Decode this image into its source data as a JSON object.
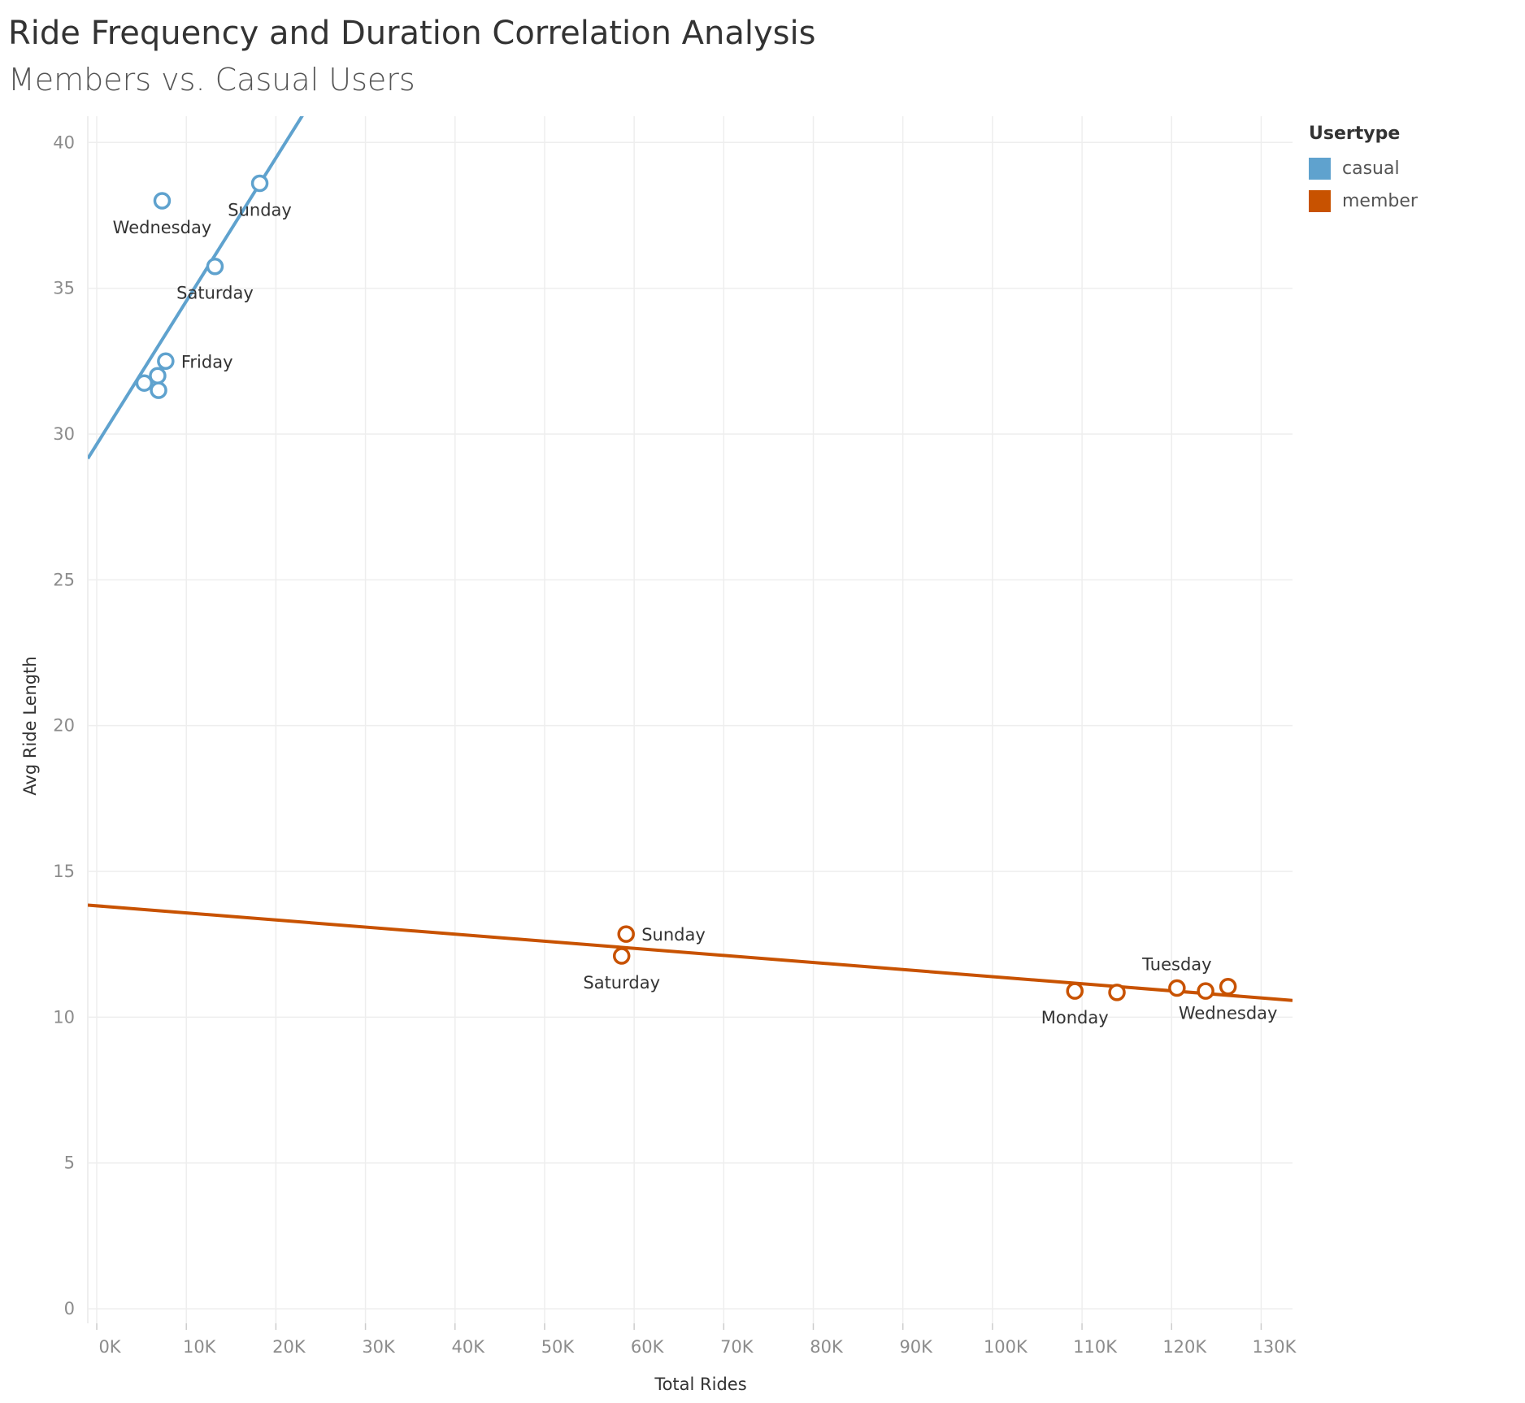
{
  "chart_data": {
    "type": "scatter",
    "title": "Ride Frequency and Duration Correlation Analysis",
    "subtitle": "Members vs. Casual Users",
    "xlabel": "Total Rides",
    "ylabel": "Avg Ride Length",
    "xlim": [
      -1000,
      133500
    ],
    "ylim": [
      -0.5,
      40.9
    ],
    "x_ticks": [
      0,
      10000,
      20000,
      30000,
      40000,
      50000,
      60000,
      70000,
      80000,
      90000,
      100000,
      110000,
      120000,
      130000
    ],
    "x_tick_labels": [
      "0K",
      "10K",
      "20K",
      "30K",
      "40K",
      "50K",
      "60K",
      "70K",
      "80K",
      "90K",
      "100K",
      "110K",
      "120K",
      "130K"
    ],
    "y_ticks": [
      0,
      5,
      10,
      15,
      20,
      25,
      30,
      35,
      40
    ],
    "y_tick_labels": [
      "0",
      "5",
      "10",
      "15",
      "20",
      "25",
      "30",
      "35",
      "40"
    ],
    "grid": true,
    "legend": {
      "title": "Usertype",
      "placement": "top-right",
      "items": [
        {
          "label": "casual",
          "color": "#5fa2ce"
        },
        {
          "label": "member",
          "color": "#c85200"
        }
      ]
    },
    "series": [
      {
        "name": "casual",
        "color": "#5fa2ce",
        "trend": {
          "intercept": 29.65,
          "slope": 0.000491
        },
        "points": [
          {
            "x": 7300,
            "y": 38.0,
            "label": "Wednesday",
            "label_pos": "below"
          },
          {
            "x": 18200,
            "y": 38.6,
            "label": "Sunday",
            "label_pos": "below"
          },
          {
            "x": 13200,
            "y": 35.75,
            "label": "Saturday",
            "label_pos": "below"
          },
          {
            "x": 7700,
            "y": 32.5,
            "label": "Friday",
            "label_pos": "right"
          },
          {
            "x": 5300,
            "y": 31.75,
            "label": ""
          },
          {
            "x": 6800,
            "y": 32.0,
            "label": ""
          },
          {
            "x": 6900,
            "y": 31.5,
            "label": ""
          }
        ]
      },
      {
        "name": "member",
        "color": "#c85200",
        "trend": {
          "intercept": 13.82,
          "slope": -2.43e-05
        },
        "points": [
          {
            "x": 59100,
            "y": 12.85,
            "label": "Sunday",
            "label_pos": "right"
          },
          {
            "x": 58600,
            "y": 12.1,
            "label": "Saturday",
            "label_pos": "below"
          },
          {
            "x": 109200,
            "y": 10.9,
            "label": "Monday",
            "label_pos": "below"
          },
          {
            "x": 113900,
            "y": 10.85,
            "label": ""
          },
          {
            "x": 120600,
            "y": 11.0,
            "label": "Tuesday",
            "label_pos": "above"
          },
          {
            "x": 123800,
            "y": 10.9,
            "label": ""
          },
          {
            "x": 126300,
            "y": 11.05,
            "label": "Wednesday",
            "label_pos": "below"
          }
        ]
      }
    ]
  }
}
